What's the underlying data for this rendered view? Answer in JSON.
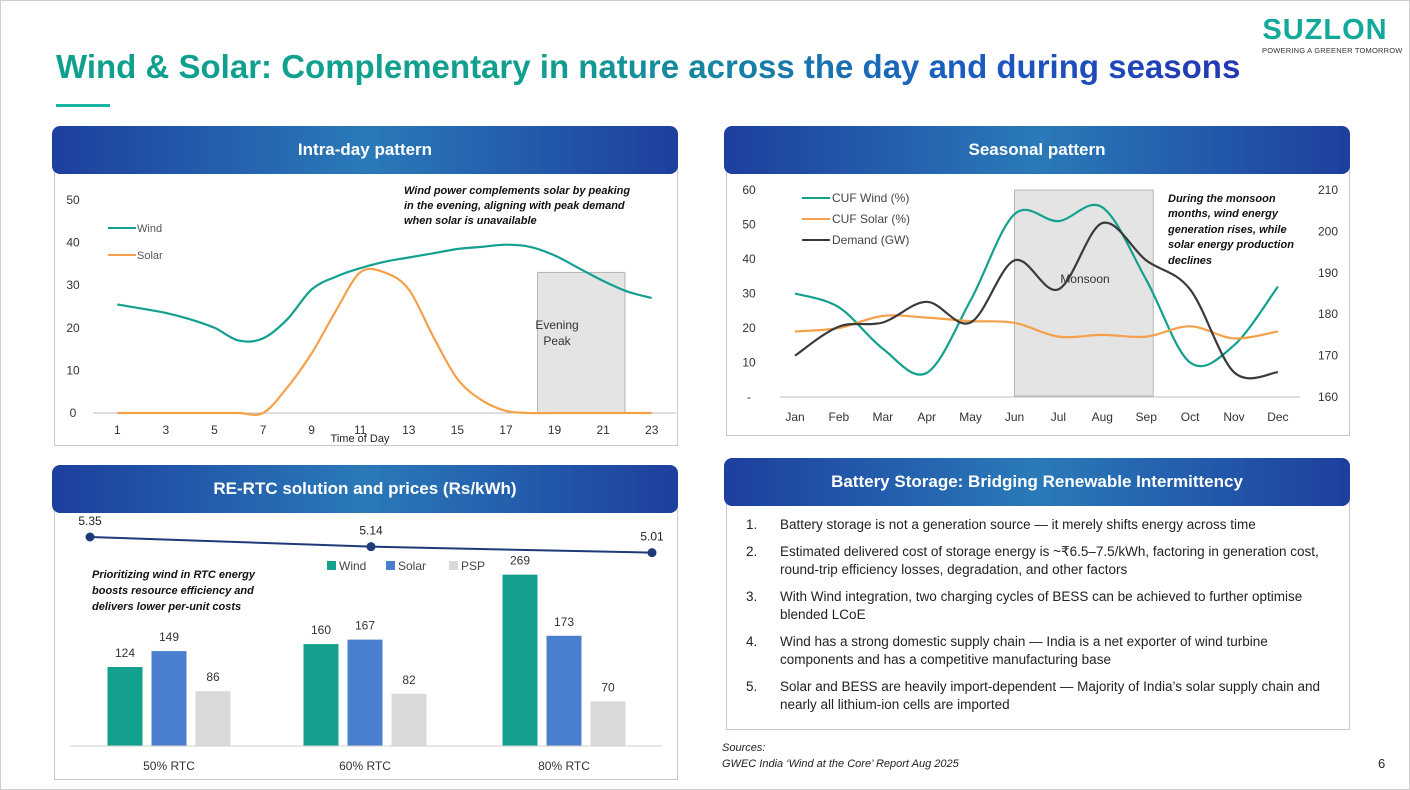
{
  "header": {
    "title": "Wind & Solar: Complementary in nature across the day and during seasons",
    "logo_brand": "SUZLON",
    "logo_tagline": "POWERING A GREENER TOMORROW"
  },
  "colors": {
    "wind": "#14a08e",
    "solar": "#f5a04a",
    "demand": "#3a3a3a",
    "solar_bar": "#4a7fd0",
    "psp": "#d9d9d9",
    "rtc_line": "#1f3a7a"
  },
  "intraday": {
    "panel_title": "Intra-day pattern",
    "annotation": [
      "Wind power complements solar by peaking",
      "in the evening, aligning with peak demand",
      "when solar is unavailable"
    ],
    "shade_label": [
      "Evening",
      "Peak"
    ]
  },
  "seasonal": {
    "panel_title": "Seasonal pattern",
    "annotation": [
      "During the monsoon",
      "months, wind energy",
      "generation rises, while",
      "solar energy production",
      "declines"
    ],
    "shade_label": "Monsoon"
  },
  "rtc": {
    "panel_title": "RE-RTC solution and prices (Rs/kWh)",
    "annotation": [
      "Prioritizing wind in RTC energy",
      "boosts resource efficiency and",
      "delivers lower per-unit costs"
    ]
  },
  "battery": {
    "panel_title": "Battery Storage: Bridging Renewable Intermittency",
    "items": [
      {
        "num": "1.",
        "text": "Battery storage is not a generation source — it merely shifts energy across time"
      },
      {
        "num": "2.",
        "text": "Estimated delivered cost of storage energy is ~₹6.5–7.5/kWh, factoring in generation cost, round-trip efficiency losses, degradation, and other factors"
      },
      {
        "num": "3.",
        "text": "With Wind integration, two charging cycles of BESS can be achieved to further optimise blended LCoE"
      },
      {
        "num": "4.",
        "text": "Wind has a strong domestic supply chain — India is a net exporter of wind turbine components and has a competitive manufacturing base"
      },
      {
        "num": "5.",
        "text": "Solar and BESS are heavily import-dependent — Majority of India’s solar supply chain and nearly all lithium-ion cells are imported"
      }
    ]
  },
  "footer": {
    "sources_label": "Sources:",
    "sources_text": "GWEC India ‘Wind at the Core’ Report Aug 2025",
    "page_number": "6"
  },
  "chart_data": [
    {
      "id": "intraday",
      "type": "line",
      "title": "Intra-day pattern",
      "xlabel": "Time of Day",
      "ylabel": "",
      "x": [
        1,
        2,
        3,
        4,
        5,
        6,
        7,
        8,
        9,
        10,
        11,
        12,
        13,
        14,
        15,
        16,
        17,
        18,
        19,
        20,
        21,
        22,
        23
      ],
      "xticks": [
        1,
        3,
        5,
        7,
        9,
        11,
        13,
        15,
        17,
        19,
        21,
        23
      ],
      "xlim": [
        0,
        24
      ],
      "ylim": [
        0,
        50
      ],
      "yticks": [
        0,
        10,
        20,
        30,
        40,
        50
      ],
      "series": [
        {
          "name": "Wind",
          "values": [
            25.5,
            24.5,
            23.5,
            22,
            20,
            17,
            17.5,
            22,
            29,
            32,
            34,
            35.5,
            36.5,
            37.5,
            38.5,
            39,
            39.5,
            39,
            37,
            34,
            31,
            28.5,
            27
          ]
        },
        {
          "name": "Solar",
          "values": [
            0,
            0,
            0,
            0,
            0,
            0,
            0,
            6,
            14,
            24,
            33,
            33,
            29,
            18,
            8,
            3,
            0.5,
            0,
            0,
            0,
            0,
            0,
            0
          ]
        }
      ],
      "shaded_region": {
        "label": "Evening Peak",
        "x_from": 18.3,
        "x_to": 21.9,
        "y_to": 33
      }
    },
    {
      "id": "seasonal",
      "type": "line",
      "title": "Seasonal pattern",
      "categories": [
        "Jan",
        "Feb",
        "Mar",
        "Apr",
        "May",
        "Jun",
        "Jul",
        "Aug",
        "Sep",
        "Oct",
        "Nov",
        "Dec"
      ],
      "ylim": [
        0,
        60
      ],
      "yticks": [
        "-",
        "10",
        "20",
        "30",
        "40",
        "50",
        "60"
      ],
      "y2lim": [
        160,
        210
      ],
      "y2ticks": [
        160,
        170,
        180,
        190,
        200,
        210
      ],
      "series": [
        {
          "name": "CUF Wind (%)",
          "axis": "left",
          "values": [
            30,
            26,
            14,
            7,
            28,
            53,
            51,
            55,
            34,
            10,
            15,
            32
          ]
        },
        {
          "name": "CUF Solar (%)",
          "axis": "left",
          "values": [
            19,
            20,
            23.5,
            23,
            22,
            21.5,
            17.5,
            18,
            17.5,
            20.5,
            17,
            19
          ]
        },
        {
          "name": "Demand (GW)",
          "axis": "right",
          "values": [
            170,
            177,
            178,
            183,
            178,
            193,
            186,
            202,
            193,
            186,
            166,
            166
          ]
        }
      ],
      "shaded_region": {
        "label": "Monsoon",
        "from": "Jun",
        "to": "Sep"
      }
    },
    {
      "id": "rtc",
      "type": "bar",
      "title": "RE-RTC solution and prices (Rs/kWh)",
      "categories": [
        "50% RTC",
        "60% RTC",
        "80% RTC"
      ],
      "series": [
        {
          "name": "Wind",
          "values": [
            124,
            160,
            269
          ]
        },
        {
          "name": "Solar",
          "values": [
            149,
            167,
            173
          ]
        },
        {
          "name": "PSP",
          "values": [
            86,
            82,
            70
          ]
        }
      ],
      "price_line": {
        "values": [
          5.35,
          5.14,
          5.01
        ],
        "labels": [
          "5.35",
          "5.14",
          "5.01"
        ]
      }
    }
  ]
}
